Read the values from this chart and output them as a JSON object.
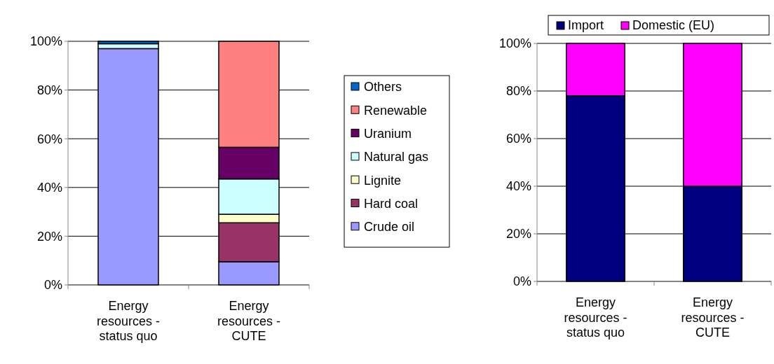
{
  "chart_data": [
    {
      "type": "bar",
      "stacked": true,
      "categories": [
        "Energy resources - status quo",
        "Energy resources - CUTE"
      ],
      "series": [
        {
          "name": "Crude oil",
          "color": "#9999ff",
          "values": [
            97,
            9.5
          ]
        },
        {
          "name": "Hard coal",
          "color": "#993366",
          "values": [
            0,
            16
          ]
        },
        {
          "name": "Lignite",
          "color": "#ffffcc",
          "values": [
            0,
            3.5
          ]
        },
        {
          "name": "Natural gas",
          "color": "#ccffff",
          "values": [
            2,
            14.5
          ]
        },
        {
          "name": "Uranium",
          "color": "#660066",
          "values": [
            0,
            13
          ]
        },
        {
          "name": "Renewable",
          "color": "#ff8080",
          "values": [
            0,
            43.5
          ]
        },
        {
          "name": "Others",
          "color": "#0066cc",
          "values": [
            1,
            0
          ]
        }
      ],
      "ylim": [
        0,
        100
      ],
      "yticks": [
        {
          "value": 0,
          "label": "0%"
        },
        {
          "value": 20,
          "label": "20%"
        },
        {
          "value": 40,
          "label": "40%"
        },
        {
          "value": 60,
          "label": "60%"
        },
        {
          "value": 80,
          "label": "80%"
        },
        {
          "value": 100,
          "label": "100%"
        }
      ],
      "grid": "y",
      "legend": "right"
    },
    {
      "type": "bar",
      "stacked": true,
      "categories": [
        "Energy resources - status quo",
        "Energy resources - CUTE"
      ],
      "series": [
        {
          "name": "Import",
          "color": "#000080",
          "values": [
            78,
            40
          ]
        },
        {
          "name": "Domestic (EU)",
          "color": "#ff00ff",
          "values": [
            22,
            60
          ]
        }
      ],
      "ylim": [
        0,
        100
      ],
      "yticks": [
        {
          "value": 0,
          "label": "0%"
        },
        {
          "value": 20,
          "label": "20%"
        },
        {
          "value": 40,
          "label": "40%"
        },
        {
          "value": 60,
          "label": "60%"
        },
        {
          "value": 80,
          "label": "80%"
        },
        {
          "value": 100,
          "label": "100%"
        }
      ],
      "grid": "y",
      "legend": "top"
    }
  ]
}
